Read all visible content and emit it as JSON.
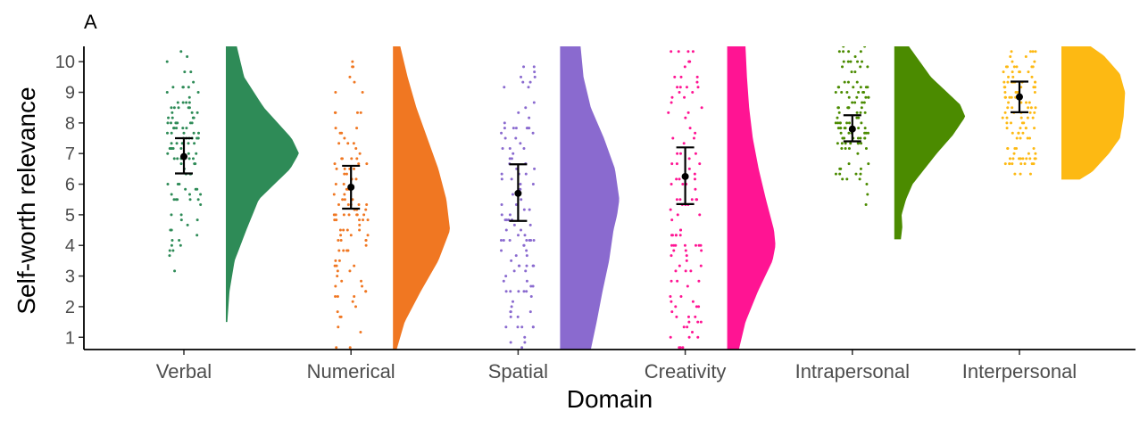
{
  "panel_label": "A",
  "chart_data": {
    "type": "raincloud",
    "xlabel": "Domain",
    "ylabel": "Self-worth relevance",
    "ylim": [
      0.6,
      10.5
    ],
    "yticks": [
      1,
      2,
      3,
      4,
      5,
      6,
      7,
      8,
      9,
      10
    ],
    "grid": false,
    "legend": "none",
    "categories": [
      "Verbal",
      "Numerical",
      "Spatial",
      "Creativity",
      "Intrapersonal",
      "Interpersonal"
    ],
    "colors": [
      "#2e8b57",
      "#f07722",
      "#8a6acf",
      "#ff1493",
      "#4b8b00",
      "#fdb913"
    ],
    "means": [
      6.9,
      5.9,
      5.7,
      6.25,
      7.8,
      8.85
    ],
    "ci_lower": [
      6.35,
      5.2,
      4.8,
      5.35,
      7.4,
      8.35
    ],
    "ci_upper": [
      7.5,
      6.6,
      6.65,
      7.2,
      8.25,
      9.35
    ],
    "data_range": [
      [
        1.5,
        10.5
      ],
      [
        0.6,
        10.5
      ],
      [
        0.6,
        10.5
      ],
      [
        0.6,
        10.5
      ],
      [
        4.2,
        10.5
      ],
      [
        6.15,
        10.5
      ]
    ],
    "density_shapes": [
      [
        [
          1.5,
          0.02
        ],
        [
          2.5,
          0.05
        ],
        [
          3.5,
          0.12
        ],
        [
          4.5,
          0.28
        ],
        [
          5.5,
          0.45
        ],
        [
          6.5,
          0.88
        ],
        [
          7.0,
          1.0
        ],
        [
          7.5,
          0.9
        ],
        [
          8.5,
          0.52
        ],
        [
          9.5,
          0.25
        ],
        [
          10.5,
          0.15
        ]
      ],
      [
        [
          0.6,
          0.05
        ],
        [
          1.5,
          0.16
        ],
        [
          2.5,
          0.38
        ],
        [
          3.5,
          0.62
        ],
        [
          4.5,
          0.78
        ],
        [
          5.5,
          0.73
        ],
        [
          6.5,
          0.62
        ],
        [
          7.5,
          0.47
        ],
        [
          8.5,
          0.32
        ],
        [
          9.5,
          0.2
        ],
        [
          10.5,
          0.1
        ]
      ],
      [
        [
          0.6,
          0.42
        ],
        [
          1.5,
          0.5
        ],
        [
          2.5,
          0.58
        ],
        [
          3.5,
          0.67
        ],
        [
          4.5,
          0.73
        ],
        [
          5.0,
          0.78
        ],
        [
          5.5,
          0.81
        ],
        [
          6.5,
          0.75
        ],
        [
          7.5,
          0.6
        ],
        [
          8.5,
          0.42
        ],
        [
          9.5,
          0.32
        ],
        [
          10.5,
          0.28
        ]
      ],
      [
        [
          0.6,
          0.16
        ],
        [
          1.5,
          0.25
        ],
        [
          2.5,
          0.42
        ],
        [
          3.5,
          0.62
        ],
        [
          4.0,
          0.66
        ],
        [
          4.5,
          0.64
        ],
        [
          5.5,
          0.53
        ],
        [
          6.5,
          0.43
        ],
        [
          7.5,
          0.35
        ],
        [
          8.5,
          0.3
        ],
        [
          9.5,
          0.27
        ],
        [
          10.5,
          0.25
        ]
      ],
      [
        [
          4.2,
          0.09
        ],
        [
          4.6,
          0.11
        ],
        [
          5.0,
          0.1
        ],
        [
          5.5,
          0.16
        ],
        [
          6.0,
          0.25
        ],
        [
          7.0,
          0.58
        ],
        [
          7.6,
          0.8
        ],
        [
          8.2,
          0.97
        ],
        [
          8.6,
          0.9
        ],
        [
          9.5,
          0.5
        ],
        [
          10.5,
          0.2
        ]
      ],
      [
        [
          6.15,
          0.25
        ],
        [
          6.4,
          0.42
        ],
        [
          7.0,
          0.65
        ],
        [
          7.5,
          0.8
        ],
        [
          8.2,
          0.85
        ],
        [
          9.0,
          0.87
        ],
        [
          9.6,
          0.8
        ],
        [
          10.2,
          0.58
        ],
        [
          10.5,
          0.4
        ]
      ]
    ]
  }
}
